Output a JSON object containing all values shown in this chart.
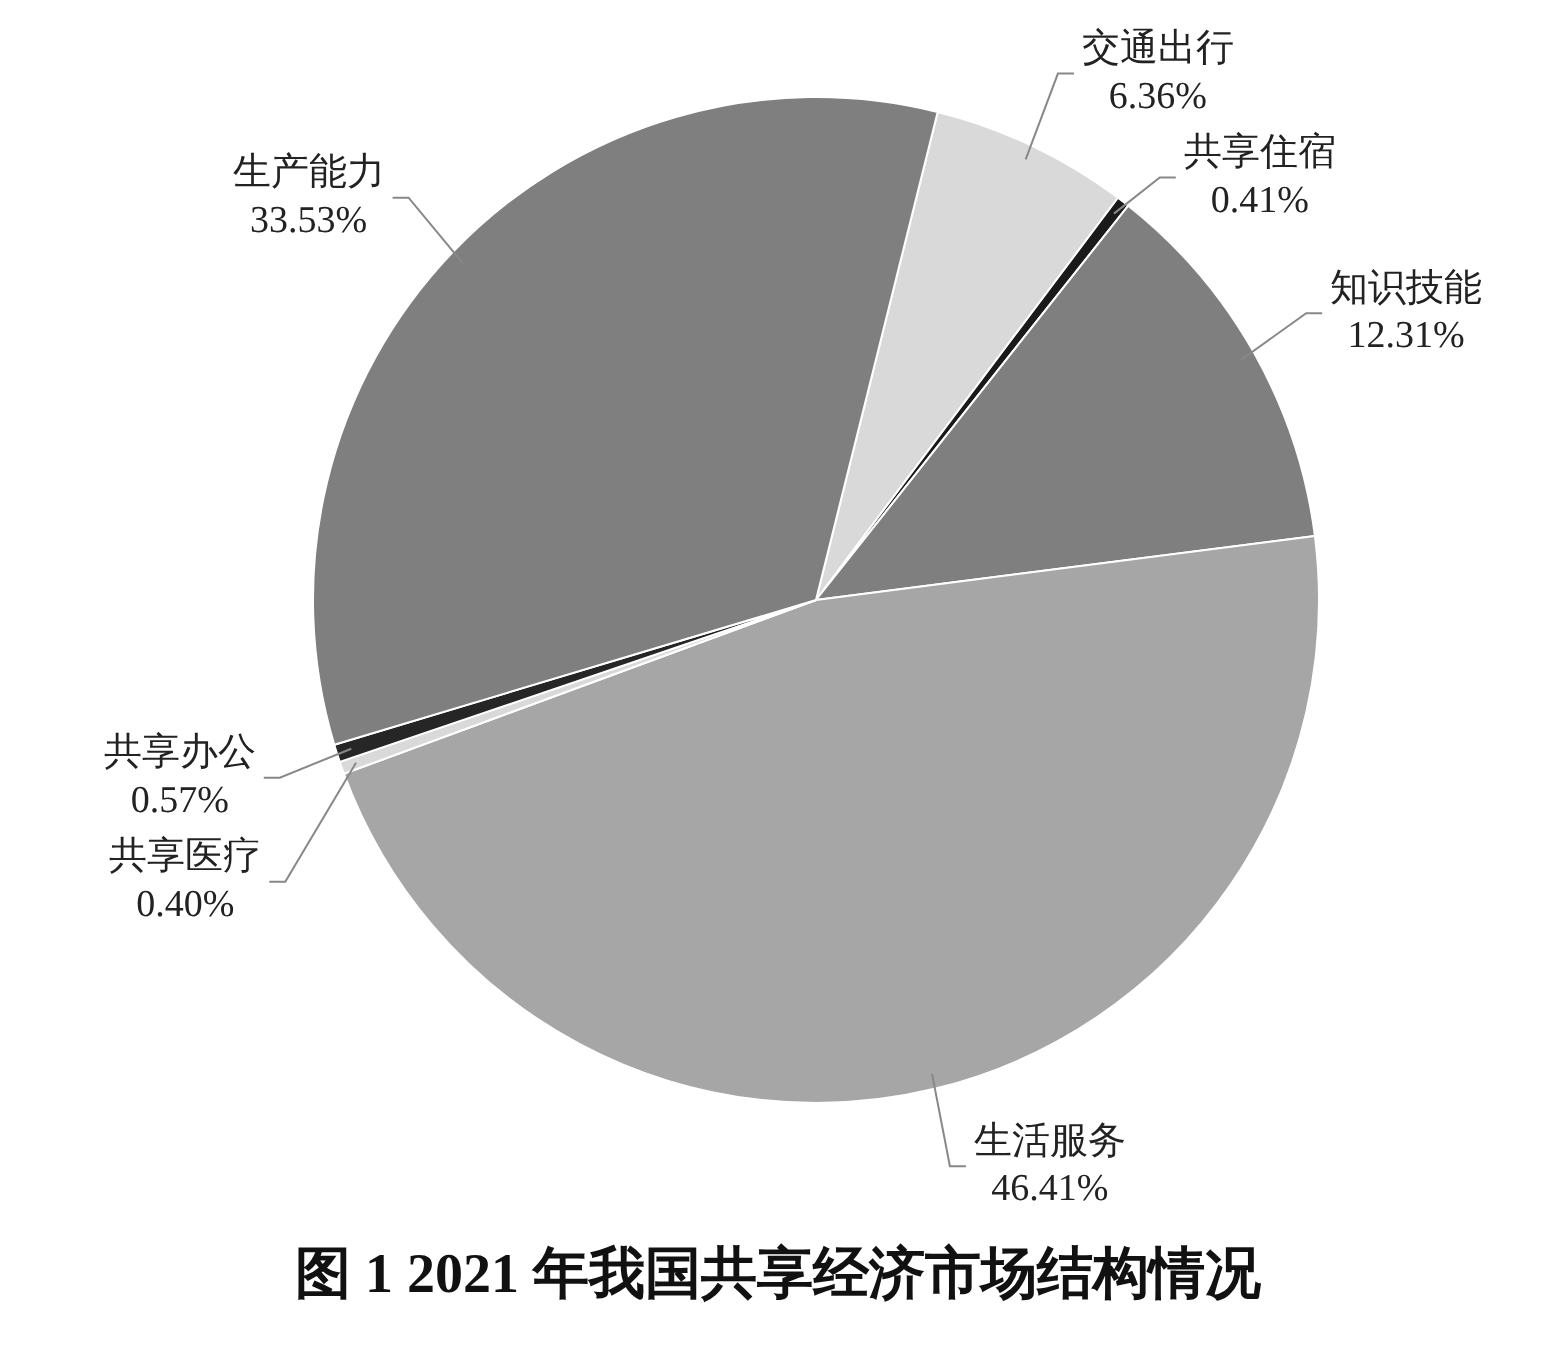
{
  "chart_data": {
    "type": "pie",
    "title": "图 1 2021 年我国共享经济市场结构情况",
    "categories": [
      "交通出行",
      "共享住宿",
      "知识技能",
      "生活服务",
      "共享医疗",
      "共享办公",
      "生产能力"
    ],
    "values": [
      6.36,
      0.41,
      12.31,
      46.41,
      0.4,
      0.57,
      33.53
    ],
    "value_labels": [
      "6.36%",
      "0.41%",
      "12.31%",
      "46.41%",
      "0.40%",
      "0.57%",
      "33.53%"
    ],
    "colors": [
      "#d9d9d9",
      "#1a1a1a",
      "#7f7f7f",
      "#a6a6a6",
      "#d9d9d9",
      "#262626",
      "#7f7f7f"
    ],
    "legend": false
  }
}
